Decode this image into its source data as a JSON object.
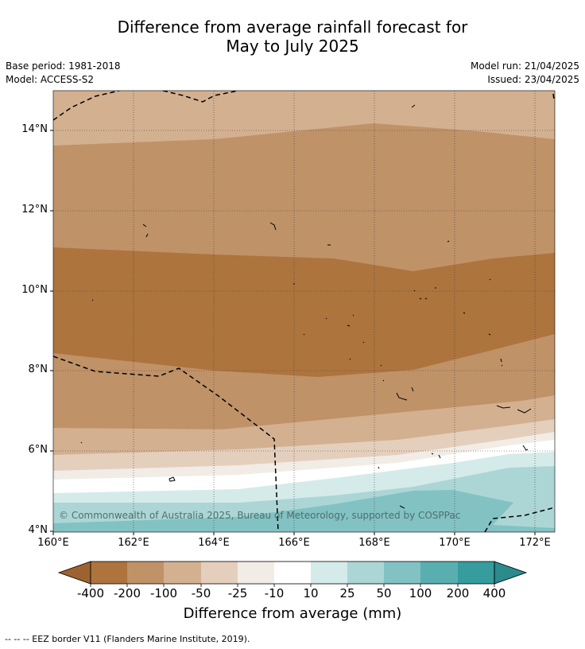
{
  "header": {
    "title_line1": "Difference from average rainfall forecast for",
    "title_line2": "May to July 2025",
    "base_period": "Base period: 1981-2018",
    "model": "Model: ACCESS-S2",
    "model_run": "Model run: 21/04/2025",
    "issued": "Issued: 23/04/2025"
  },
  "map": {
    "lat_labels": [
      "14°N",
      "12°N",
      "10°N",
      "8°N",
      "6°N",
      "4°N"
    ],
    "lon_labels": [
      "160°E",
      "162°E",
      "164°E",
      "166°E",
      "168°E",
      "170°E",
      "172°E"
    ],
    "copyright": "© Commonwealth of Australia 2025, Bureau of Meteorology, supported by COSPPac"
  },
  "colorbar": {
    "labels": [
      "-400",
      "-200",
      "-100",
      "-50",
      "-25",
      "-10",
      "10",
      "25",
      "50",
      "100",
      "200",
      "400"
    ],
    "colors": [
      "#9c6330",
      "#ae743e",
      "#c09268",
      "#d3b090",
      "#e4cfbd",
      "#f2ece6",
      "#ffffff",
      "#d5ebe9",
      "#acd6d5",
      "#82c2c2",
      "#59afb0",
      "#369c9d",
      "#2a8a8c"
    ],
    "title": "Difference from average (mm)"
  },
  "footer": {
    "legend": "-- -- -- EEZ border V11 (Flanders Marine Institute, 2019)."
  }
}
